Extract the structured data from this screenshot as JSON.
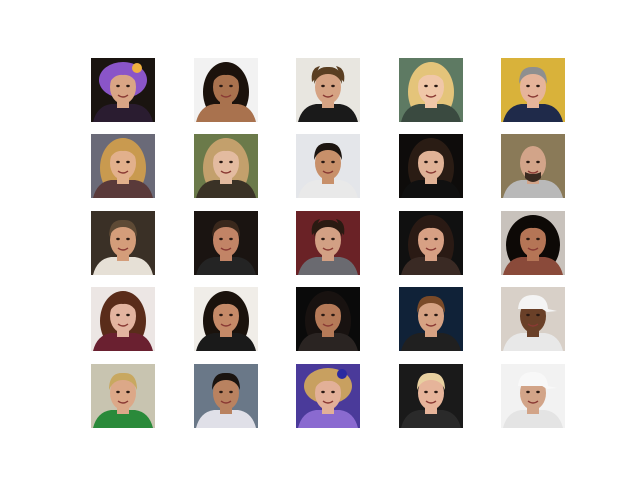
{
  "figure": {
    "background": "#ffffff",
    "rows": 5,
    "columns": 5
  },
  "faces": [
    {
      "bg": "#1a1410",
      "skin": "#d9a585",
      "hair": "#8a55c8",
      "shirt": "#2a1c30",
      "hair_style": "up",
      "accent": "#f0b040"
    },
    {
      "bg": "#f2f2f2",
      "skin": "#a9724e",
      "hair": "#1b120c",
      "shirt": "#a9724e",
      "hair_style": "long",
      "accent": "#000000"
    },
    {
      "bg": "#e8e6e0",
      "skin": "#d6a383",
      "hair": "#5a3f22",
      "shirt": "#1a1a1a",
      "hair_style": "messy",
      "accent": "#ffffff"
    },
    {
      "bg": "#5e7a63",
      "skin": "#f0c7a8",
      "hair": "#e4c47a",
      "shirt": "#3a4a40",
      "hair_style": "long",
      "accent": "#ffffff"
    },
    {
      "bg": "#d9b23a",
      "skin": "#e6b49a",
      "hair": "#8f8f8f",
      "shirt": "#1f2a4a",
      "hair_style": "short",
      "accent": "#2a4a9a"
    },
    {
      "bg": "#6a6a78",
      "skin": "#e2b08c",
      "hair": "#c99a4f",
      "shirt": "#5a3a3a",
      "hair_style": "long",
      "accent": "#ffffff"
    },
    {
      "bg": "#6b7a4a",
      "skin": "#e3bba0",
      "hair": "#c3a06c",
      "shirt": "#3a3226",
      "hair_style": "long",
      "accent": "#ffffff"
    },
    {
      "bg": "#e4e6ea",
      "skin": "#c8906a",
      "hair": "#1c1510",
      "shirt": "#e9e9e9",
      "hair_style": "short",
      "accent": "#2e7a3a"
    },
    {
      "bg": "#0e0c0b",
      "skin": "#e0b296",
      "hair": "#2a1c14",
      "shirt": "#101010",
      "hair_style": "long",
      "accent": "#000000"
    },
    {
      "bg": "#8a7a58",
      "skin": "#d2a489",
      "hair": "#6a5a4a",
      "shirt": "#b9b9b9",
      "hair_style": "bald",
      "accent": "#3a2a20"
    },
    {
      "bg": "#3a3026",
      "skin": "#d49d7a",
      "hair": "#5e4a35",
      "shirt": "#e6e0d6",
      "hair_style": "short",
      "accent": "#ffffff"
    },
    {
      "bg": "#1a1411",
      "skin": "#c28466",
      "hair": "#3a281c",
      "shirt": "#242424",
      "hair_style": "short",
      "accent": "#ffffff"
    },
    {
      "bg": "#6a2226",
      "skin": "#d2a084",
      "hair": "#2a1a12",
      "shirt": "#6a6a70",
      "hair_style": "messy",
      "accent": "#ffffff"
    },
    {
      "bg": "#101010",
      "skin": "#d7a084",
      "hair": "#2a1a14",
      "shirt": "#3a2a24",
      "hair_style": "long",
      "accent": "#ffffff"
    },
    {
      "bg": "#c8c2bc",
      "skin": "#b57556",
      "hair": "#0d0906",
      "shirt": "#8a4a3a",
      "hair_style": "curly",
      "accent": "#ffffff"
    },
    {
      "bg": "#ece6e4",
      "skin": "#e3b4a0",
      "hair": "#5a2c1a",
      "shirt": "#6a2030",
      "hair_style": "long",
      "accent": "#ffffff"
    },
    {
      "bg": "#f0ede8",
      "skin": "#c58a68",
      "hair": "#1a120c",
      "shirt": "#1a1a1a",
      "hair_style": "long",
      "accent": "#ffffff"
    },
    {
      "bg": "#0a0a0a",
      "skin": "#b57a58",
      "hair": "#181210",
      "shirt": "#2a2422",
      "hair_style": "long",
      "accent": "#ffffff"
    },
    {
      "bg": "#102238",
      "skin": "#d6a283",
      "hair": "#7a4a28",
      "shirt": "#202020",
      "hair_style": "short",
      "accent": "#4a8ac0"
    },
    {
      "bg": "#d8d0c8",
      "skin": "#6a4028",
      "hair": "#f4f4f4",
      "shirt": "#e8e8e8",
      "hair_style": "cap",
      "accent": "#c02020"
    },
    {
      "bg": "#c8c4b0",
      "skin": "#dca888",
      "hair": "#c8a860",
      "shirt": "#2a8a3a",
      "hair_style": "short",
      "accent": "#e08020"
    },
    {
      "bg": "#6a7888",
      "skin": "#b98260",
      "hair": "#1a1410",
      "shirt": "#e0e0e8",
      "hair_style": "short",
      "accent": "#ffffff"
    },
    {
      "bg": "#4a3a9a",
      "skin": "#e2b098",
      "hair": "#c8a060",
      "shirt": "#8a6ad0",
      "hair_style": "up",
      "accent": "#2a2aa0"
    },
    {
      "bg": "#1a1a1a",
      "skin": "#e6b49a",
      "hair": "#e8d0a0",
      "shirt": "#2a2a2a",
      "hair_style": "short",
      "accent": "#ffffff"
    },
    {
      "bg": "#f2f2f2",
      "skin": "#d2a488",
      "hair": "#f8f8f8",
      "shirt": "#e4e4e4",
      "hair_style": "cap",
      "accent": "#1a1a1a"
    }
  ]
}
